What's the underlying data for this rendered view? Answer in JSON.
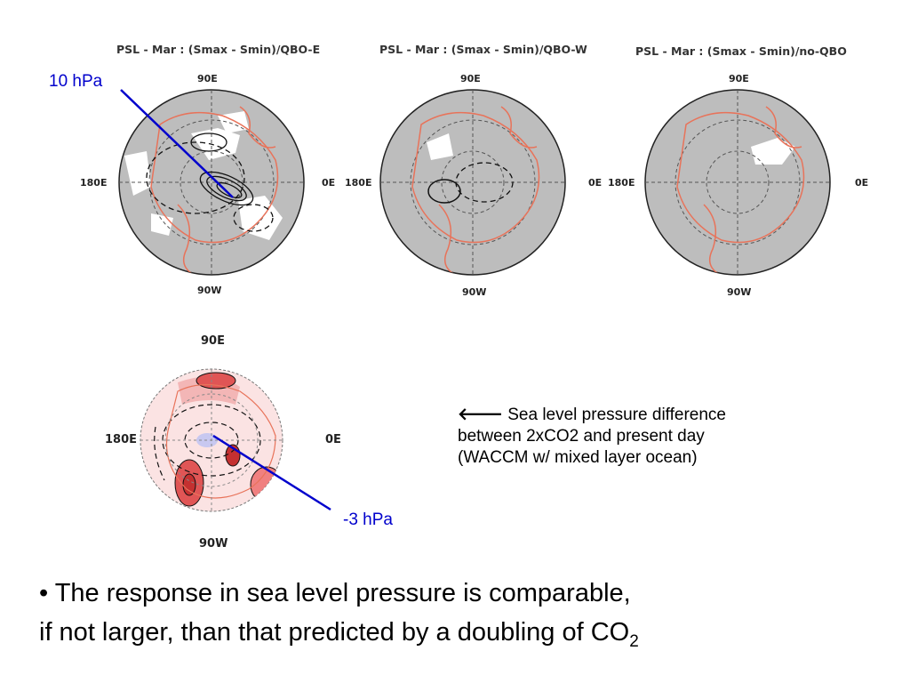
{
  "panels": [
    {
      "title": "PSL - Mar : (Smax - Smin)/QBO-E",
      "top": "90E",
      "left": "180E",
      "right": "0E",
      "bottom": "90W"
    },
    {
      "title": "PSL - Mar : (Smax - Smin)/QBO-W",
      "top": "90E",
      "left": "180E",
      "right": "0E",
      "bottom": "90W"
    },
    {
      "title": "PSL - Mar : (Smax - Smin)/no-QBO",
      "top": "90E",
      "left": "180E",
      "right": "0E",
      "bottom": "90W"
    }
  ],
  "bottom_panel": {
    "top": "90E",
    "left": "180E",
    "right": "0E",
    "bottom": "90W"
  },
  "annotations": {
    "top_arrow": "10 hPa",
    "bottom_arrow": "-3 hPa"
  },
  "note": {
    "arrow_icon": "left-arrow-icon",
    "line1": "Sea level pressure difference",
    "line2": "between 2xCO2 and present day",
    "line3": "(WACCM w/ mixed layer ocean)"
  },
  "bullet": {
    "marker": "•",
    "line1": "The response in sea level pressure is comparable,",
    "line2": "if not larger, than that predicted by a doubling of CO",
    "subscript": "2"
  },
  "colors": {
    "land_outline": "#e8735a",
    "map_fill": "#bdbdbd",
    "arrow": "#0000cc",
    "red_fill": "#e05555"
  }
}
